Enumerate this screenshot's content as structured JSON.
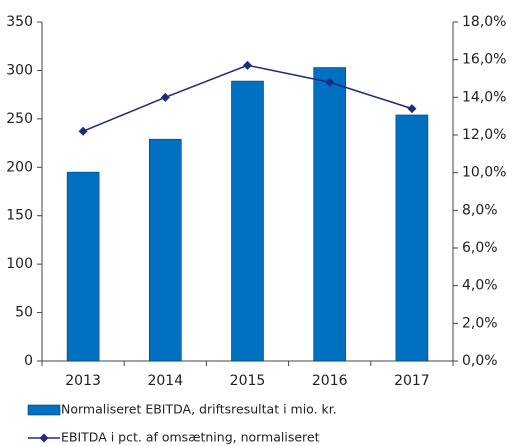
{
  "chart_data": {
    "type": "bar",
    "categories": [
      "2013",
      "2014",
      "2015",
      "2016",
      "2017"
    ],
    "series": [
      {
        "name": "Normaliseret EBITDA, driftsresultat i mio. kr.",
        "type": "bar",
        "color": "#0070c0",
        "values": [
          195,
          229,
          289,
          303,
          254
        ]
      },
      {
        "name": "EBITDA i pct. af omsætning, normaliseret",
        "type": "line",
        "axis": "y2",
        "color": "#1f2a7a",
        "values": [
          12.2,
          14.0,
          15.7,
          14.8,
          13.4
        ]
      }
    ],
    "ylim": [
      0,
      350
    ],
    "yticks": [
      0,
      50,
      100,
      150,
      200,
      250,
      300,
      350
    ],
    "y2lim": [
      0,
      18
    ],
    "y2ticks": [
      {
        "value": 0,
        "label": "0,0%"
      },
      {
        "value": 2,
        "label": "2,0%"
      },
      {
        "value": 4,
        "label": "4,0%"
      },
      {
        "value": 6,
        "label": "6,0%"
      },
      {
        "value": 8,
        "label": "8,0%"
      },
      {
        "value": 10,
        "label": "10,0%"
      },
      {
        "value": 12,
        "label": "12,0%"
      },
      {
        "value": 14,
        "label": "14,0%"
      },
      {
        "value": 16,
        "label": "16,0%"
      },
      {
        "value": 18,
        "label": "18,0%"
      }
    ]
  }
}
